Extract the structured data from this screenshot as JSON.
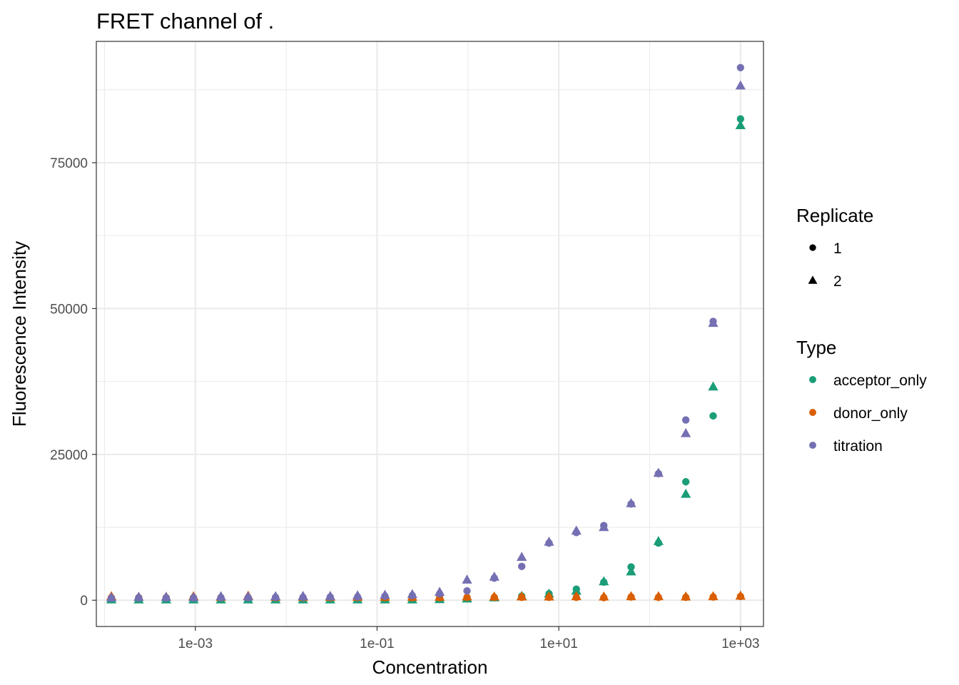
{
  "chart_data": {
    "type": "scatter",
    "title": "FRET channel of .",
    "xlabel": "Concentration",
    "ylabel": "Fluorescence Intensity",
    "x_scale": "log10",
    "xlim": [
      8.13e-05,
      1790
    ],
    "ylim": [
      -4500,
      95800
    ],
    "x_ticks": [
      0.001,
      0.1,
      10,
      1000
    ],
    "x_tick_labels": [
      "1e-03",
      "1e-01",
      "1e+01",
      "1e+03"
    ],
    "y_ticks": [
      0,
      25000,
      50000,
      75000
    ],
    "y_tick_labels": [
      "0",
      "25000",
      "50000",
      "75000"
    ],
    "grid": true,
    "legend_position": "right",
    "x": [
      0.000119,
      0.000238,
      0.000477,
      0.000954,
      0.00191,
      0.00381,
      0.00763,
      0.0153,
      0.0305,
      0.061,
      0.122,
      0.244,
      0.488,
      0.977,
      1.95,
      3.91,
      7.81,
      15.6,
      31.3,
      62.5,
      125,
      250,
      500,
      1000
    ],
    "legends": [
      {
        "title": "Replicate",
        "entries": [
          {
            "label": "1",
            "shape": "circle"
          },
          {
            "label": "2",
            "shape": "triangle"
          }
        ]
      },
      {
        "title": "Type",
        "entries": [
          {
            "label": "acceptor_only",
            "color": "#1b9e77"
          },
          {
            "label": "donor_only",
            "color": "#d95f02"
          },
          {
            "label": "titration",
            "color": "#7570b3"
          }
        ]
      }
    ],
    "series": [
      {
        "name": "acceptor_only",
        "replicate": "1",
        "shape": "circle",
        "color": "#1b9e77",
        "values": [
          100,
          100,
          100,
          100,
          100,
          100,
          100,
          100,
          100,
          100,
          100,
          100,
          150,
          250,
          450,
          700,
          1100,
          1900,
          3100,
          5700,
          9800,
          20300,
          31600,
          82500
        ]
      },
      {
        "name": "acceptor_only",
        "replicate": "2",
        "shape": "triangle",
        "color": "#1b9e77",
        "values": [
          100,
          100,
          100,
          100,
          100,
          100,
          100,
          100,
          100,
          100,
          100,
          100,
          150,
          250,
          450,
          700,
          1100,
          1600,
          3200,
          4900,
          10100,
          18200,
          36600,
          81400
        ]
      },
      {
        "name": "donor_only",
        "replicate": "1",
        "shape": "circle",
        "color": "#d95f02",
        "values": [
          450,
          450,
          450,
          450,
          450,
          450,
          450,
          450,
          450,
          450,
          450,
          450,
          450,
          500,
          500,
          500,
          500,
          500,
          450,
          550,
          500,
          500,
          550,
          650
        ]
      },
      {
        "name": "donor_only",
        "replicate": "2",
        "shape": "triangle",
        "color": "#d95f02",
        "values": [
          650,
          550,
          550,
          650,
          550,
          750,
          550,
          550,
          550,
          550,
          550,
          550,
          550,
          600,
          600,
          600,
          600,
          650,
          600,
          650,
          650,
          600,
          650,
          750
        ]
      },
      {
        "name": "titration",
        "replicate": "1",
        "shape": "circle",
        "color": "#7570b3",
        "values": [
          350,
          400,
          400,
          400,
          450,
          450,
          500,
          500,
          550,
          550,
          700,
          800,
          1100,
          1600,
          3800,
          5800,
          9800,
          11600,
          12800,
          16500,
          21700,
          30900,
          47800,
          91300
        ]
      },
      {
        "name": "titration",
        "replicate": "2",
        "shape": "triangle",
        "color": "#7570b3",
        "values": [
          450,
          550,
          550,
          500,
          650,
          600,
          650,
          700,
          700,
          800,
          900,
          1000,
          1400,
          3500,
          4000,
          7400,
          10000,
          11900,
          12500,
          16600,
          21800,
          28600,
          47500,
          88200
        ]
      }
    ]
  }
}
